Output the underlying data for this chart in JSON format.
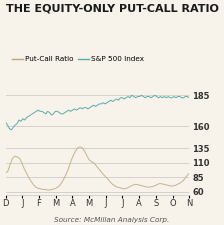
{
  "title": "THE EQUITY-ONLY PUT-CALL RATIO",
  "legend_labels": [
    "Put-Call Ratio",
    "S&P 500 Index"
  ],
  "legend_colors": [
    "#b8a87a",
    "#5aadaa"
  ],
  "x_labels": [
    "D",
    "J",
    "F",
    "M",
    "A",
    "M",
    "J",
    "J",
    "A",
    "S",
    "O",
    "N"
  ],
  "sp500_yticks": [
    160,
    185
  ],
  "sp500_ylim": [
    150,
    192
  ],
  "pcr_yticks": [
    60,
    85,
    110,
    135
  ],
  "pcr_ylim": [
    55,
    145
  ],
  "source_text": "Source: McMillan Analysis Corp.",
  "background_color": "#f7f2ea",
  "sp500_color": "#5aadaa",
  "pcr_color": "#c4b48a",
  "title_color": "#1a1a1a",
  "grid_color": "#cccccc",
  "sp500_data": [
    163,
    161,
    158,
    157,
    159,
    161,
    162,
    165,
    164,
    166,
    165,
    167,
    168,
    169,
    170,
    171,
    172,
    173,
    172,
    172,
    171,
    170,
    172,
    171,
    169,
    170,
    172,
    172,
    171,
    170,
    170,
    171,
    172,
    173,
    172,
    173,
    174,
    173,
    174,
    175,
    174,
    175,
    175,
    174,
    175,
    176,
    177,
    176,
    177,
    178,
    178,
    179,
    178,
    179,
    180,
    181,
    180,
    181,
    182,
    181,
    183,
    183,
    182,
    183,
    184,
    183,
    185,
    184,
    183,
    184,
    184,
    185,
    184,
    183,
    184,
    184,
    183,
    184,
    185,
    184,
    183,
    184,
    183,
    184,
    183,
    184,
    183,
    183,
    184,
    183,
    184,
    184,
    183,
    183,
    184,
    184,
    183
  ],
  "pcr_data": [
    92,
    96,
    108,
    118,
    122,
    120,
    118,
    110,
    100,
    92,
    84,
    78,
    72,
    68,
    66,
    65,
    64,
    64,
    63,
    63,
    64,
    65,
    67,
    70,
    75,
    82,
    90,
    100,
    112,
    122,
    130,
    136,
    138,
    136,
    130,
    122,
    115,
    112,
    110,
    105,
    100,
    95,
    90,
    86,
    82,
    77,
    73,
    70,
    68,
    67,
    66,
    65,
    66,
    68,
    70,
    72,
    73,
    72,
    71,
    70,
    69,
    68,
    68,
    69,
    70,
    72,
    74,
    74,
    73,
    72,
    71,
    70,
    70,
    71,
    73,
    75,
    78,
    82,
    88,
    92
  ]
}
